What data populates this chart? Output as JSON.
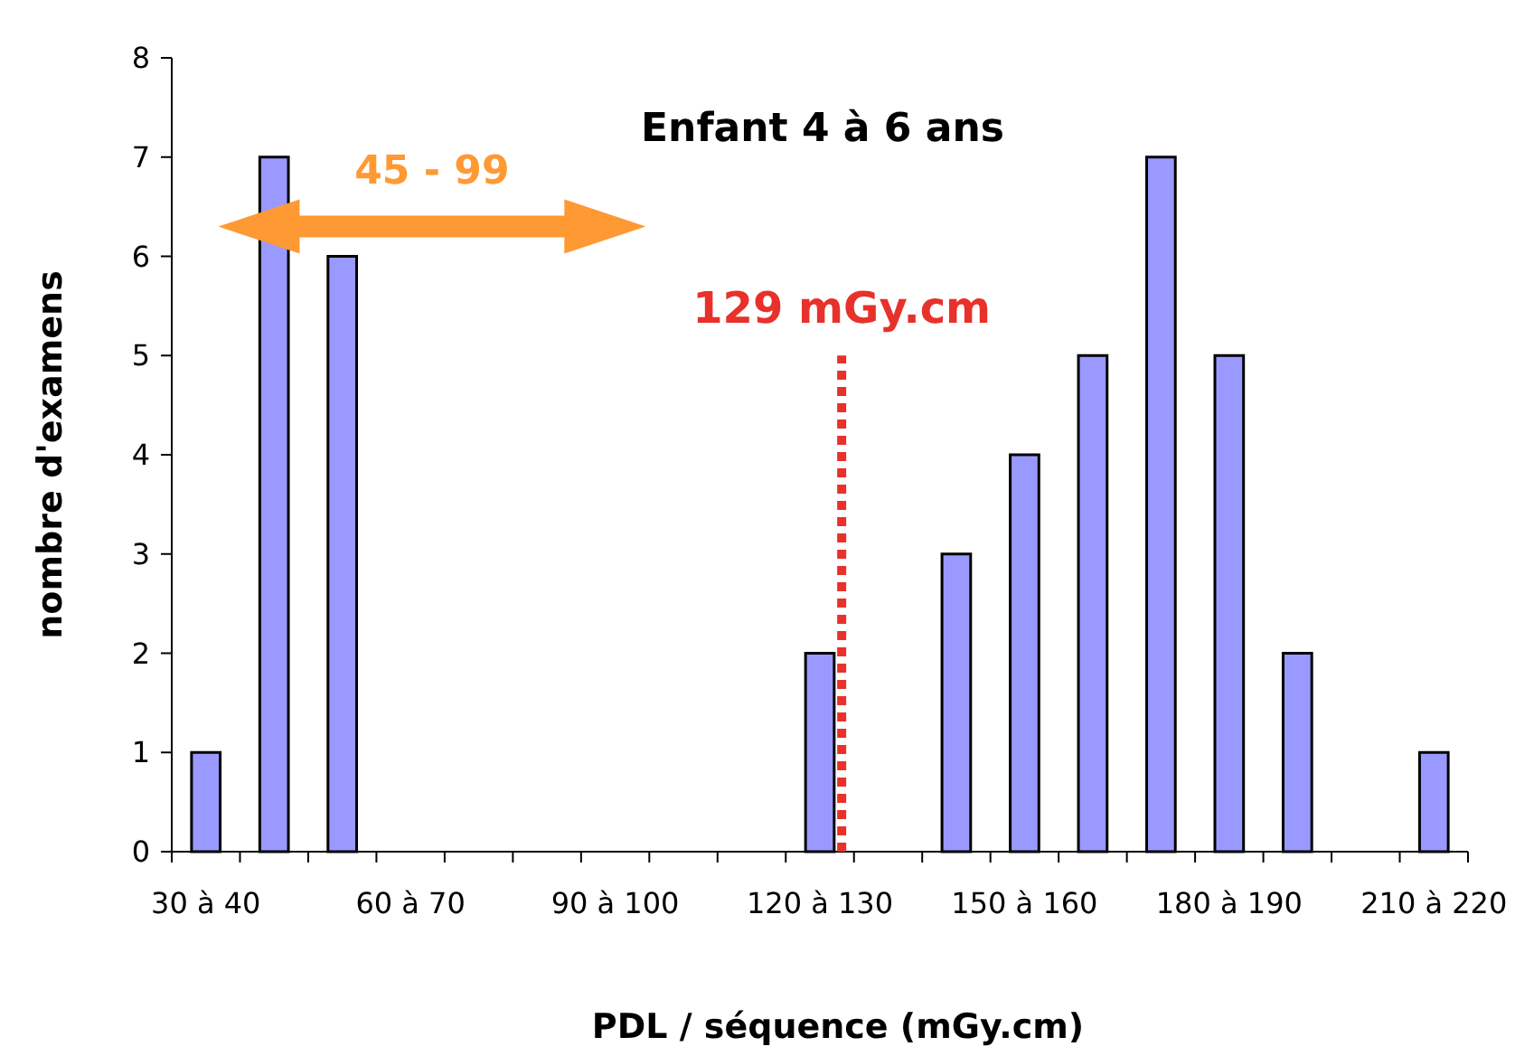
{
  "chart_data": {
    "type": "bar",
    "title": "Enfant 4 à 6 ans",
    "xlabel": "PDL / séquence (mGy.cm)",
    "ylabel": "nombre d'examens",
    "categories": [
      "30 à 40",
      null,
      null,
      "60 à 70",
      null,
      null,
      "90 à 100",
      null,
      null,
      "120 à 130",
      null,
      null,
      "150 à 160",
      null,
      null,
      "180 à 190",
      null,
      null,
      "210 à 220"
    ],
    "values": [
      1,
      7,
      6,
      0,
      0,
      0,
      0,
      0,
      0,
      2,
      0,
      3,
      4,
      5,
      7,
      5,
      2,
      0,
      1
    ],
    "color": "#9999ff",
    "ylim": [
      0,
      8
    ],
    "yticks": [
      0,
      1,
      2,
      3,
      4,
      5,
      6,
      7,
      8
    ],
    "grid": false,
    "ref_lines": [
      {
        "axis": "x",
        "value": "120 à 130",
        "label": "129 mGy.cm",
        "color": "#e8312a",
        "line_style": "dotted"
      }
    ],
    "annotations": [
      {
        "text": "45 - 99"
      }
    ]
  }
}
